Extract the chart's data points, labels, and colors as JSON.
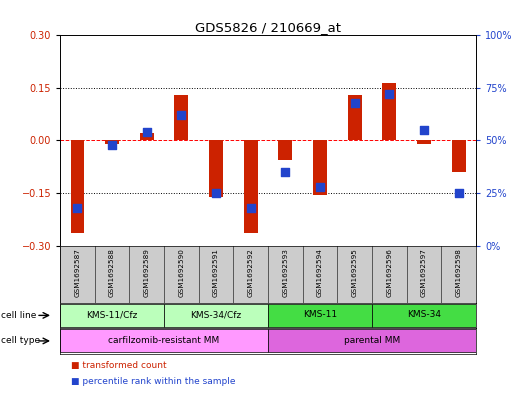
{
  "title": "GDS5826 / 210669_at",
  "samples": [
    "GSM1692587",
    "GSM1692588",
    "GSM1692589",
    "GSM1692590",
    "GSM1692591",
    "GSM1692592",
    "GSM1692593",
    "GSM1692594",
    "GSM1692595",
    "GSM1692596",
    "GSM1692597",
    "GSM1692598"
  ],
  "transformed_count": [
    -0.265,
    -0.01,
    0.02,
    0.13,
    -0.16,
    -0.265,
    -0.055,
    -0.155,
    0.13,
    0.165,
    -0.01,
    -0.09
  ],
  "percentile_rank": [
    18,
    48,
    54,
    62,
    25,
    18,
    35,
    28,
    68,
    72,
    55,
    25
  ],
  "cell_line_groups": [
    {
      "label": "KMS-11/Cfz",
      "start": 0,
      "end": 3,
      "color": "#bbffbb"
    },
    {
      "label": "KMS-34/Cfz",
      "start": 3,
      "end": 6,
      "color": "#bbffbb"
    },
    {
      "label": "KMS-11",
      "start": 6,
      "end": 9,
      "color": "#44dd44"
    },
    {
      "label": "KMS-34",
      "start": 9,
      "end": 12,
      "color": "#44dd44"
    }
  ],
  "cell_type_groups": [
    {
      "label": "carfilzomib-resistant MM",
      "start": 0,
      "end": 6,
      "color": "#ff99ff"
    },
    {
      "label": "parental MM",
      "start": 6,
      "end": 12,
      "color": "#dd66dd"
    }
  ],
  "bar_color": "#cc2200",
  "dot_color": "#2244cc",
  "left_ylim": [
    -0.3,
    0.3
  ],
  "right_ylim": [
    0,
    100
  ],
  "left_yticks": [
    -0.3,
    -0.15,
    0,
    0.15,
    0.3
  ],
  "right_yticks": [
    0,
    25,
    50,
    75,
    100
  ],
  "right_yticklabels": [
    "0%",
    "25%",
    "50%",
    "75%",
    "100%"
  ],
  "hlines": [
    -0.15,
    0,
    0.15
  ],
  "hline_styles": [
    "dotted",
    "dashed",
    "dotted"
  ],
  "legend_items": [
    {
      "label": "transformed count",
      "color": "#cc2200"
    },
    {
      "label": "percentile rank within the sample",
      "color": "#2244cc"
    }
  ],
  "sample_bg_color": "#cccccc",
  "bg_color": "#ffffff"
}
